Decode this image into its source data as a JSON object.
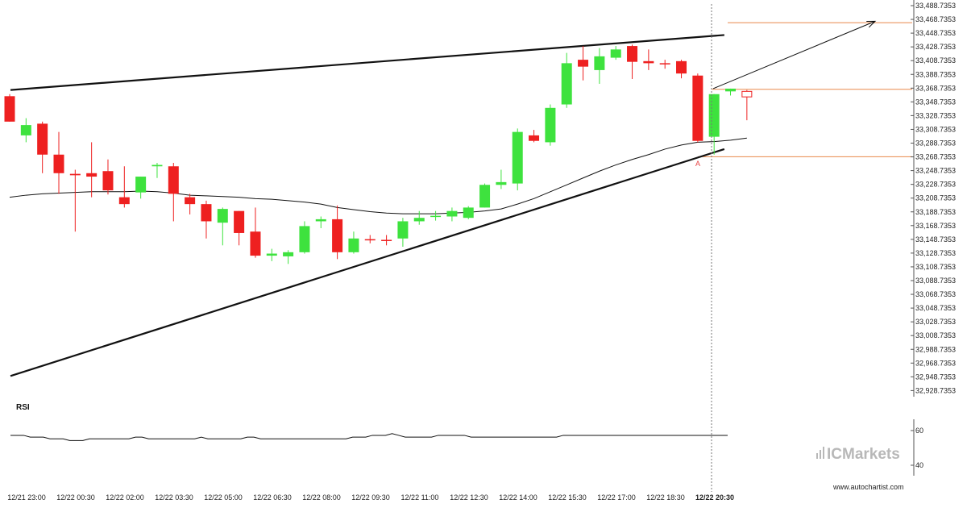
{
  "chart_data": {
    "type": "candlestick",
    "price_axis": {
      "ticks": [
        "33,488.7353",
        "33,468.7353",
        "33,448.7353",
        "33,428.7353",
        "33,408.7353",
        "33,388.7353",
        "33,368.7353",
        "33,348.7353",
        "33,328.7353",
        "33,308.7353",
        "33,288.7353",
        "33,268.7353",
        "33,248.7353",
        "33,228.7353",
        "33,208.7353",
        "33,188.7353",
        "33,168.7353",
        "33,148.7353",
        "33,128.7353",
        "33,108.7353",
        "33,088.7353",
        "33,068.7353",
        "33,048.7353",
        "33,028.7353",
        "33,008.7353",
        "32,988.7353",
        "32,968.7353",
        "32,948.7353",
        "32,928.7353"
      ]
    },
    "time_axis": {
      "ticks": [
        "12/21 23:00",
        "12/22 00:30",
        "12/22 02:00",
        "12/22 03:30",
        "12/22 05:00",
        "12/22 06:30",
        "12/22 08:00",
        "12/22 09:30",
        "12/22 11:00",
        "12/22 12:30",
        "12/22 14:00",
        "12/22 15:30",
        "12/22 17:00",
        "12/22 18:30",
        "12/22 20:30"
      ],
      "highlighted": "12/22 20:30"
    },
    "ohlc": [
      [
        33357,
        33360,
        33320,
        33320
      ],
      [
        33300,
        33325,
        33290,
        33315
      ],
      [
        33317,
        33320,
        33245,
        33272
      ],
      [
        33272,
        33305,
        33215,
        33245
      ],
      [
        33244,
        33250,
        33160,
        33242
      ],
      [
        33245,
        33290,
        33210,
        33240
      ],
      [
        33248,
        33265,
        33214,
        33220
      ],
      [
        33210,
        33255,
        33195,
        33200
      ],
      [
        33217,
        33240,
        33208,
        33240
      ],
      [
        33255,
        33260,
        33238,
        33257
      ],
      [
        33255,
        33260,
        33175,
        33215
      ],
      [
        33210,
        33215,
        33185,
        33200
      ],
      [
        33200,
        33205,
        33150,
        33175
      ],
      [
        33173,
        33195,
        33140,
        33193
      ],
      [
        33190,
        33190,
        33140,
        33158
      ],
      [
        33160,
        33195,
        33122,
        33125
      ],
      [
        33125,
        33135,
        33117,
        33128
      ],
      [
        33124,
        33133,
        33113,
        33130
      ],
      [
        33130,
        33175,
        33128,
        33168
      ],
      [
        33175,
        33182,
        33165,
        33178
      ],
      [
        33178,
        33198,
        33120,
        33130
      ],
      [
        33130,
        33160,
        33128,
        33150
      ],
      [
        33149,
        33155,
        33143,
        33148
      ],
      [
        33148,
        33155,
        33140,
        33147
      ],
      [
        33150,
        33180,
        33138,
        33175
      ],
      [
        33175,
        33190,
        33170,
        33180
      ],
      [
        33182,
        33190,
        33176,
        33183
      ],
      [
        33182,
        33195,
        33175,
        33190
      ],
      [
        33180,
        33197,
        33178,
        33195
      ],
      [
        33195,
        33230,
        33195,
        33228
      ],
      [
        33228,
        33250,
        33222,
        33232
      ],
      [
        33230,
        33310,
        33220,
        33305
      ],
      [
        33300,
        33308,
        33290,
        33292
      ],
      [
        33290,
        33345,
        33285,
        33340
      ],
      [
        33345,
        33420,
        33340,
        33405
      ],
      [
        33410,
        33430,
        33380,
        33400
      ],
      [
        33395,
        33427,
        33375,
        33415
      ],
      [
        33413,
        33430,
        33410,
        33425
      ],
      [
        33430,
        33432,
        33382,
        33407
      ],
      [
        33408,
        33425,
        33395,
        33405
      ],
      [
        33405,
        33410,
        33397,
        33404
      ],
      [
        33408,
        33410,
        33383,
        33390
      ],
      [
        33387,
        33390,
        33290,
        33292
      ],
      [
        33298,
        33360,
        33272,
        33360
      ],
      [
        33364,
        33368,
        33358,
        33368
      ],
      [
        33364,
        33366,
        33322,
        33356
      ]
    ],
    "moving_average": [
      33210,
      33213,
      33215,
      33216,
      33217,
      33218,
      33218,
      33218,
      33219,
      33218,
      33216,
      33213,
      33212,
      33211,
      33210,
      33208,
      33207,
      33205,
      33203,
      33200,
      33195,
      33192,
      33189,
      33187,
      33186,
      33186,
      33186,
      33187,
      33188,
      33190,
      33193,
      33200,
      33208,
      33218,
      33228,
      33238,
      33248,
      33257,
      33265,
      33272,
      33280,
      33286,
      33290,
      33291,
      33293,
      33296
    ],
    "wedge_upper": {
      "from": [
        0,
        33366
      ],
      "to": [
        45,
        33446
      ]
    },
    "wedge_lower": {
      "from": [
        0,
        32950
      ],
      "to": [
        45,
        33280
      ]
    },
    "horizontal_levels": [
      33464,
      33367,
      33269
    ],
    "projection": {
      "from": [
        45,
        33368
      ],
      "to": [
        58,
        33466
      ]
    },
    "point_label": "A",
    "rsi": {
      "title": "RSI",
      "ticks": [
        "60",
        "40"
      ],
      "values": [
        57,
        57,
        57,
        56,
        56,
        56,
        55,
        55,
        55,
        54,
        54,
        54,
        55,
        55,
        55,
        55,
        55,
        55,
        55,
        56,
        56,
        55,
        55,
        55,
        55,
        55,
        55,
        55,
        55,
        56,
        55,
        55,
        55,
        55,
        55,
        55,
        56,
        56,
        55,
        55,
        55,
        55,
        55,
        55,
        55,
        55,
        55,
        55,
        55,
        55,
        55,
        55,
        56,
        56,
        56,
        57,
        57,
        57,
        58,
        57,
        56,
        56,
        56,
        56,
        56,
        57,
        57,
        57,
        57,
        57,
        56,
        56,
        56,
        56,
        56,
        56,
        56,
        56,
        56,
        56,
        56,
        56,
        56,
        56,
        57,
        57,
        57,
        57,
        57,
        57,
        57,
        57,
        57,
        57,
        57,
        57,
        57,
        57,
        57,
        57,
        57,
        57,
        57,
        57,
        57,
        57,
        57,
        57,
        57,
        57
      ],
      "range": [
        30,
        70
      ]
    }
  },
  "branding": {
    "brand_name": "ICMarkets",
    "website": "www.autochartist.com"
  },
  "colors": {
    "bull": "#3ee23e",
    "bear": "#ee2020",
    "level": "#e8884a",
    "line": "#111111"
  }
}
